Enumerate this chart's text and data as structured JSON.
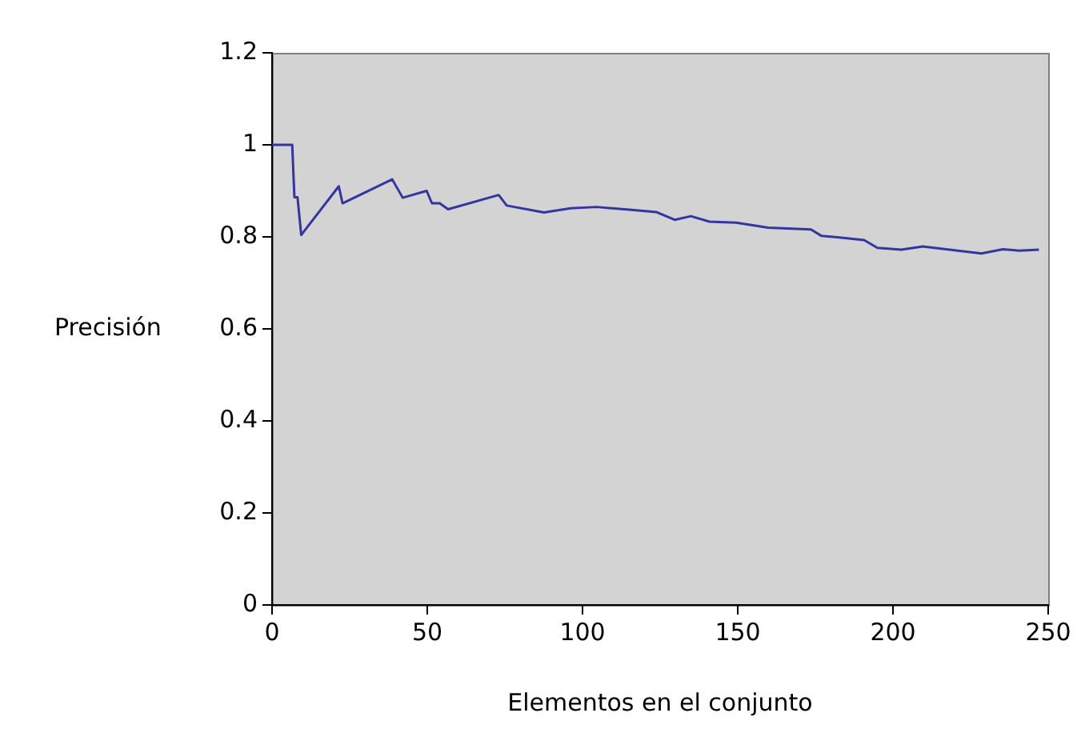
{
  "chart_data": {
    "type": "line",
    "xlabel": "Elementos en el conjunto",
    "ylabel": "Precisión",
    "xlim": [
      0,
      250
    ],
    "xticks": [
      0,
      50,
      100,
      150,
      200,
      250
    ],
    "ylim": [
      0,
      1.2
    ],
    "yticks": [
      0,
      0.2,
      0.4,
      0.6,
      0.8,
      1,
      1.2
    ],
    "grid": false,
    "legend": false,
    "marker": "none",
    "line_style": "solid",
    "series": [
      {
        "color": "#3535a0",
        "x": [
          0,
          6.5,
          7.2,
          8.2,
          9.4,
          21.5,
          22.7,
          38.7,
          42.1,
          49.8,
          51.5,
          54,
          56.7,
          73,
          75.6,
          87.6,
          96.2,
          104.6,
          115,
          123.7,
          129.7,
          134.9,
          140.9,
          149.5,
          159.8,
          173.6,
          177,
          182.1,
          190.7,
          195,
          202.7,
          209.6,
          218.2,
          228.5,
          235.4,
          240.6,
          247
        ],
        "values": [
          1,
          1,
          0.886,
          0.886,
          0.804,
          0.91,
          0.873,
          0.925,
          0.885,
          0.9,
          0.873,
          0.873,
          0.86,
          0.891,
          0.868,
          0.853,
          0.862,
          0.865,
          0.859,
          0.854,
          0.837,
          0.845,
          0.833,
          0.831,
          0.82,
          0.816,
          0.802,
          0.799,
          0.793,
          0.776,
          0.772,
          0.779,
          0.772,
          0.764,
          0.773,
          0.77,
          0.772
        ]
      }
    ]
  }
}
